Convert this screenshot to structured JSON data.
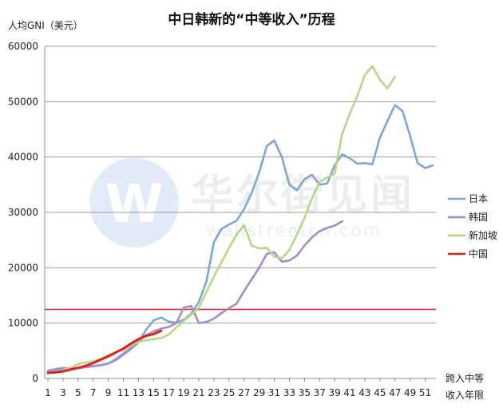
{
  "chart_data": {
    "type": "line",
    "title": "中日韩新的“中等收入”历程",
    "ylabel": "人均GNI（美元）",
    "xlabel_lines": [
      "跨入中等",
      "收入年限"
    ],
    "ylim": [
      0,
      60000
    ],
    "yticks": [
      0,
      10000,
      20000,
      30000,
      40000,
      50000,
      60000
    ],
    "xlim": [
      1,
      52
    ],
    "xticks": [
      1,
      3,
      5,
      7,
      9,
      11,
      13,
      15,
      17,
      19,
      21,
      23,
      25,
      27,
      29,
      31,
      33,
      35,
      37,
      39,
      41,
      43,
      45,
      47,
      49,
      51
    ],
    "grid": "horizontal",
    "legend_position": "right",
    "reference_line": {
      "value": 12476,
      "color": "#e02020"
    },
    "watermark": {
      "brand": "华尔街见闻",
      "url": "wallstreetcn.com",
      "logo_letter": "W"
    },
    "series": [
      {
        "name": "日本",
        "color": "#7ea6d2",
        "points": [
          [
            1,
            1400
          ],
          [
            2,
            1700
          ],
          [
            3,
            1900
          ],
          [
            4,
            1800
          ],
          [
            5,
            1900
          ],
          [
            6,
            2100
          ],
          [
            7,
            2300
          ],
          [
            8,
            2400
          ],
          [
            9,
            2700
          ],
          [
            10,
            3300
          ],
          [
            11,
            4300
          ],
          [
            12,
            5300
          ],
          [
            13,
            6500
          ],
          [
            14,
            8800
          ],
          [
            15,
            10500
          ],
          [
            16,
            11000
          ],
          [
            17,
            10300
          ],
          [
            18,
            10100
          ],
          [
            19,
            10600
          ],
          [
            20,
            11700
          ],
          [
            21,
            13800
          ],
          [
            22,
            17500
          ],
          [
            23,
            24600
          ],
          [
            24,
            27000
          ],
          [
            25,
            27800
          ],
          [
            26,
            28500
          ],
          [
            27,
            30600
          ],
          [
            28,
            33500
          ],
          [
            29,
            37200
          ],
          [
            30,
            42000
          ],
          [
            31,
            43000
          ],
          [
            32,
            40000
          ],
          [
            33,
            35000
          ],
          [
            34,
            34000
          ],
          [
            35,
            36000
          ],
          [
            36,
            36800
          ],
          [
            37,
            35000
          ],
          [
            38,
            35200
          ],
          [
            39,
            38500
          ],
          [
            40,
            40500
          ],
          [
            41,
            39800
          ],
          [
            42,
            38800
          ],
          [
            43,
            38900
          ],
          [
            44,
            38700
          ],
          [
            45,
            43500
          ],
          [
            46,
            46500
          ],
          [
            47,
            49400
          ],
          [
            48,
            48300
          ],
          [
            49,
            43800
          ],
          [
            50,
            38900
          ],
          [
            51,
            38000
          ],
          [
            52,
            38500
          ]
        ]
      },
      {
        "name": "韩国",
        "color": "#a68cc6",
        "points": [
          [
            1,
            1200
          ],
          [
            2,
            1400
          ],
          [
            3,
            1600
          ],
          [
            4,
            1800
          ],
          [
            5,
            1900
          ],
          [
            6,
            2000
          ],
          [
            7,
            2200
          ],
          [
            8,
            2400
          ],
          [
            9,
            2700
          ],
          [
            10,
            3500
          ],
          [
            11,
            4500
          ],
          [
            12,
            5500
          ],
          [
            13,
            6700
          ],
          [
            14,
            7800
          ],
          [
            15,
            8500
          ],
          [
            16,
            9000
          ],
          [
            17,
            9300
          ],
          [
            18,
            10000
          ],
          [
            19,
            12800
          ],
          [
            20,
            13100
          ],
          [
            21,
            10000
          ],
          [
            22,
            10200
          ],
          [
            23,
            10800
          ],
          [
            24,
            11800
          ],
          [
            25,
            12700
          ],
          [
            26,
            13500
          ],
          [
            27,
            15800
          ],
          [
            28,
            17900
          ],
          [
            29,
            20000
          ],
          [
            30,
            22500
          ],
          [
            31,
            22800
          ],
          [
            32,
            21100
          ],
          [
            33,
            21300
          ],
          [
            34,
            22200
          ],
          [
            35,
            24000
          ],
          [
            36,
            25500
          ],
          [
            37,
            26600
          ],
          [
            38,
            27200
          ],
          [
            39,
            27600
          ],
          [
            40,
            28400
          ]
        ]
      },
      {
        "name": "新加坡",
        "color": "#b9d682",
        "points": [
          [
            1,
            1000
          ],
          [
            2,
            1200
          ],
          [
            3,
            1500
          ],
          [
            4,
            1900
          ],
          [
            5,
            2600
          ],
          [
            6,
            2900
          ],
          [
            7,
            3100
          ],
          [
            8,
            3500
          ],
          [
            9,
            4200
          ],
          [
            10,
            4800
          ],
          [
            11,
            5200
          ],
          [
            12,
            5900
          ],
          [
            13,
            6600
          ],
          [
            14,
            6900
          ],
          [
            15,
            7100
          ],
          [
            16,
            7300
          ],
          [
            17,
            7900
          ],
          [
            18,
            9200
          ],
          [
            19,
            10400
          ],
          [
            20,
            11500
          ],
          [
            21,
            12800
          ],
          [
            22,
            15600
          ],
          [
            23,
            18400
          ],
          [
            24,
            21000
          ],
          [
            25,
            23600
          ],
          [
            26,
            26000
          ],
          [
            27,
            27700
          ],
          [
            28,
            24000
          ],
          [
            29,
            23500
          ],
          [
            30,
            23600
          ],
          [
            31,
            22000
          ],
          [
            32,
            21700
          ],
          [
            33,
            23200
          ],
          [
            34,
            26000
          ],
          [
            35,
            29000
          ],
          [
            36,
            32600
          ],
          [
            37,
            35500
          ],
          [
            38,
            36300
          ],
          [
            39,
            37000
          ],
          [
            40,
            44200
          ],
          [
            41,
            47800
          ],
          [
            42,
            51000
          ],
          [
            43,
            54800
          ],
          [
            44,
            56400
          ],
          [
            45,
            54000
          ],
          [
            46,
            52400
          ],
          [
            47,
            54500
          ]
        ]
      },
      {
        "name": "中国",
        "color": "#e02020",
        "points": [
          [
            1,
            1000
          ],
          [
            2,
            1100
          ],
          [
            3,
            1300
          ],
          [
            4,
            1600
          ],
          [
            5,
            1900
          ],
          [
            6,
            2300
          ],
          [
            7,
            2800
          ],
          [
            8,
            3400
          ],
          [
            9,
            4000
          ],
          [
            10,
            4700
          ],
          [
            11,
            5400
          ],
          [
            12,
            6300
          ],
          [
            13,
            7100
          ],
          [
            14,
            7700
          ],
          [
            15,
            8000
          ],
          [
            16,
            8600
          ]
        ]
      }
    ]
  }
}
